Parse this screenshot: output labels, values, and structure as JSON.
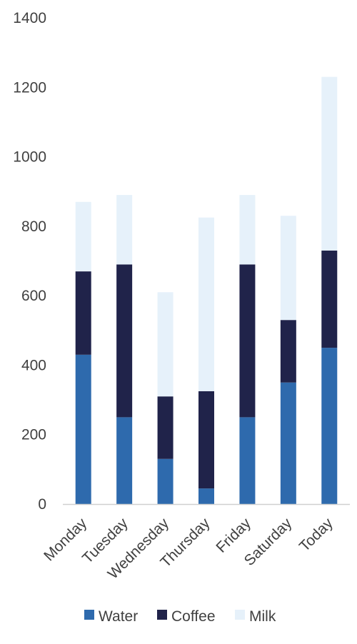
{
  "chart_data": {
    "type": "bar",
    "stacked": true,
    "categories": [
      "Monday",
      "Tuesday",
      "Wednesday",
      "Thursday",
      "Friday",
      "Saturday",
      "Today"
    ],
    "series": [
      {
        "name": "Water",
        "color": "#2e6aad",
        "values": [
          430,
          250,
          130,
          45,
          250,
          350,
          450
        ]
      },
      {
        "name": "Coffee",
        "color": "#20234a",
        "values": [
          240,
          440,
          180,
          280,
          440,
          180,
          280
        ]
      },
      {
        "name": "Milk",
        "color": "#e6f1fa",
        "values": [
          200,
          200,
          300,
          500,
          200,
          300,
          500
        ]
      }
    ],
    "y_ticks": [
      "0",
      "200",
      "400",
      "600",
      "800",
      "1000",
      "1200",
      "1400"
    ],
    "ylim": [
      0,
      1400
    ],
    "title": "",
    "xlabel": "",
    "ylabel": "",
    "grid": false,
    "legend_position": "bottom",
    "x_tick_rotation": "diagonal"
  }
}
